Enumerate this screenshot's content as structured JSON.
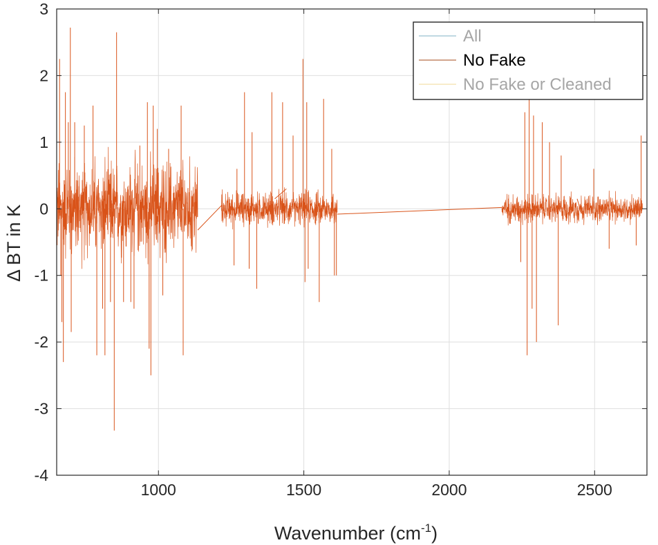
{
  "chart_data": {
    "type": "line",
    "title": "",
    "xlabel_main": "Wavenumber (cm",
    "xlabel_sup": "-1",
    "xlabel_close": ")",
    "ylabel": "Δ BT in K",
    "xlim": [
      650,
      2680
    ],
    "ylim": [
      -4,
      3
    ],
    "xticks": [
      1000,
      1500,
      2000,
      2500
    ],
    "yticks": [
      3,
      2,
      1,
      0,
      -1,
      -2,
      -3,
      -4
    ],
    "xtick_labels": [
      "1000",
      "1500",
      "2000",
      "2500"
    ],
    "ytick_labels": [
      "3",
      "2",
      "1",
      "0",
      "-1",
      "-2",
      "-3",
      "-4"
    ],
    "grid": true,
    "legend_position": "top-right",
    "legend": [
      {
        "name": "All",
        "color": "#7fb2c6",
        "text_color": "#a6a6a6"
      },
      {
        "name": "No Fake",
        "color": "#a64a19",
        "text_color": "#000000"
      },
      {
        "name": "No Fake or Cleaned",
        "color": "#f2d896",
        "text_color": "#a6a6a6"
      }
    ],
    "line_color": "#d95319",
    "bands": [
      {
        "x_start": 650,
        "x_end": 1135,
        "amplitude": 1.0
      },
      {
        "x_start": 1217,
        "x_end": 1615,
        "amplitude": 0.35
      },
      {
        "x_start": 2181,
        "x_end": 2665,
        "amplitude": 0.3
      }
    ],
    "spikes": [
      {
        "x": 660,
        "y": 2.25
      },
      {
        "x": 664,
        "y": -1.0
      },
      {
        "x": 668,
        "y": -1.7
      },
      {
        "x": 673,
        "y": -2.3
      },
      {
        "x": 680,
        "y": 1.75
      },
      {
        "x": 690,
        "y": 1.3
      },
      {
        "x": 697,
        "y": 2.72
      },
      {
        "x": 700,
        "y": -1.85
      },
      {
        "x": 712,
        "y": 1.3
      },
      {
        "x": 745,
        "y": 1.25
      },
      {
        "x": 775,
        "y": 1.55
      },
      {
        "x": 788,
        "y": -2.2
      },
      {
        "x": 808,
        "y": -1.5
      },
      {
        "x": 816,
        "y": -2.2
      },
      {
        "x": 835,
        "y": -1.4
      },
      {
        "x": 848,
        "y": -3.33
      },
      {
        "x": 856,
        "y": 2.65
      },
      {
        "x": 880,
        "y": -1.4
      },
      {
        "x": 905,
        "y": -1.4
      },
      {
        "x": 916,
        "y": -1.5
      },
      {
        "x": 936,
        "y": 0.95
      },
      {
        "x": 962,
        "y": 1.6
      },
      {
        "x": 968,
        "y": -2.1
      },
      {
        "x": 974,
        "y": -2.5
      },
      {
        "x": 982,
        "y": 1.55
      },
      {
        "x": 996,
        "y": 1.2
      },
      {
        "x": 1015,
        "y": -1.3
      },
      {
        "x": 1035,
        "y": 0.9
      },
      {
        "x": 1078,
        "y": 1.55
      },
      {
        "x": 1085,
        "y": -2.2
      },
      {
        "x": 1260,
        "y": -0.85
      },
      {
        "x": 1270,
        "y": 0.6
      },
      {
        "x": 1296,
        "y": 1.75
      },
      {
        "x": 1312,
        "y": -0.9
      },
      {
        "x": 1322,
        "y": 1.15
      },
      {
        "x": 1338,
        "y": -1.2
      },
      {
        "x": 1390,
        "y": 1.75
      },
      {
        "x": 1427,
        "y": 1.6
      },
      {
        "x": 1463,
        "y": 1.1
      },
      {
        "x": 1497,
        "y": 2.25
      },
      {
        "x": 1504,
        "y": -1.1
      },
      {
        "x": 1510,
        "y": 1.6
      },
      {
        "x": 1515,
        "y": -0.9
      },
      {
        "x": 1553,
        "y": -1.4
      },
      {
        "x": 1568,
        "y": 1.65
      },
      {
        "x": 1596,
        "y": 0.9
      },
      {
        "x": 1605,
        "y": -1.0
      },
      {
        "x": 1612,
        "y": -1.0
      },
      {
        "x": 2246,
        "y": -0.8
      },
      {
        "x": 2260,
        "y": 1.45
      },
      {
        "x": 2268,
        "y": -2.2
      },
      {
        "x": 2275,
        "y": 1.65
      },
      {
        "x": 2285,
        "y": -1.5
      },
      {
        "x": 2290,
        "y": 1.4
      },
      {
        "x": 2300,
        "y": -2.0
      },
      {
        "x": 2320,
        "y": 1.3
      },
      {
        "x": 2345,
        "y": 1.0
      },
      {
        "x": 2375,
        "y": -1.75
      },
      {
        "x": 2385,
        "y": 0.8
      },
      {
        "x": 2497,
        "y": 0.6
      },
      {
        "x": 2550,
        "y": -0.6
      },
      {
        "x": 2660,
        "y": 1.1
      },
      {
        "x": 2643,
        "y": -0.55
      }
    ],
    "connectors": [
      {
        "x": [
          1135,
          1217
        ],
        "y": [
          -0.32,
          0.05
        ]
      },
      {
        "x": [
          1400,
          1440
        ],
        "y": [
          0.15,
          0.3
        ]
      },
      {
        "x": [
          1615,
          2181
        ],
        "y": [
          -0.08,
          0.02
        ]
      },
      {
        "x": [
          2440,
          2450
        ],
        "y": [
          0.15,
          0.0
        ]
      }
    ]
  }
}
